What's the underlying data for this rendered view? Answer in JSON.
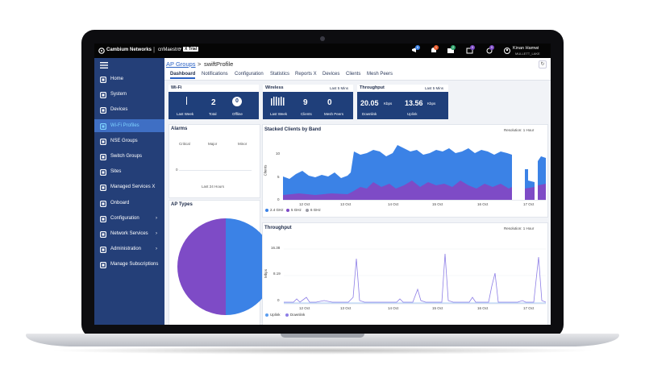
{
  "topbar": {
    "brand": "Cambium Networks",
    "product": "cnMaestro",
    "product_tm": "™",
    "edition": "X Trial",
    "user_name": "Kinan Hamwi",
    "user_org": "MULLETT_LAKE",
    "badges": [
      "6",
      "1",
      "2",
      "0",
      "0"
    ]
  },
  "sidebar": {
    "items": [
      {
        "label": "Home",
        "icon": "home-icon"
      },
      {
        "label": "System",
        "icon": "globe-icon"
      },
      {
        "label": "Devices",
        "icon": "devices-icon"
      },
      {
        "label": "Wi-Fi Profiles",
        "icon": "wifi-profile-icon"
      },
      {
        "label": "NSE Groups",
        "icon": "nse-icon"
      },
      {
        "label": "Switch Groups",
        "icon": "switch-icon"
      },
      {
        "label": "Sites",
        "icon": "sites-icon"
      },
      {
        "label": "Managed Services X",
        "icon": "managed-services-icon"
      },
      {
        "label": "Onboard",
        "icon": "onboard-icon"
      },
      {
        "label": "Configuration",
        "icon": "gear-icon"
      },
      {
        "label": "Network Services",
        "icon": "grid-icon"
      },
      {
        "label": "Administration",
        "icon": "admin-icon"
      },
      {
        "label": "Manage Subscriptions",
        "icon": "dollar-icon"
      }
    ],
    "active_index": 3,
    "chevron": "›"
  },
  "breadcrumb": {
    "parent": "AP Groups",
    "sep": ">",
    "current": "swiftProfile"
  },
  "tabs": [
    "Dashboard",
    "Notifications",
    "Configuration",
    "Statistics",
    "Reports X",
    "Devices",
    "Clients",
    "Mesh Peers"
  ],
  "active_tab": 0,
  "kpi": {
    "wifi": {
      "title": "Wi-Fi",
      "total": "2",
      "offline": "0",
      "labels": [
        "Last Week",
        "Total",
        "Offline"
      ]
    },
    "wireless": {
      "title": "Wireless",
      "period": "Last 5 Mins",
      "clients": "9",
      "mesh_peers": "0",
      "labels": [
        "Last Week",
        "Clients",
        "Mesh Peers"
      ]
    },
    "throughput": {
      "title": "Throughput",
      "period": "Last 5 Mins",
      "downlink": "20.05",
      "uplink": "13.56",
      "unit": "Kbps",
      "labels": [
        "Downlink",
        "Uplink"
      ]
    }
  },
  "alarms": {
    "title": "Alarms",
    "columns": [
      "Critical",
      "Major",
      "Minor"
    ],
    "zero": "0",
    "period": "Last 24 Hours"
  },
  "ap_types": {
    "title": "AP Types"
  },
  "stacked_clients": {
    "title": "Stacked Clients by Band",
    "resolution": "Resolution: 1 Hour",
    "ylabel": "Clients",
    "yticks": [
      "10",
      "5",
      "0"
    ],
    "xticks": [
      "12 Oct",
      "13 Oct",
      "14 Oct",
      "15 Oct",
      "16 Oct",
      "17 Oct"
    ],
    "legend": [
      "2.4 GHz",
      "5 GHz",
      "6 GHz"
    ]
  },
  "throughput_chart": {
    "title": "Throughput",
    "resolution": "Resolution: 1 Hour",
    "ylabel": "Mbps",
    "yticks": [
      "16.38",
      "8.19",
      "0"
    ],
    "xticks": [
      "12 Oct",
      "13 Oct",
      "14 Oct",
      "15 Oct",
      "16 Oct",
      "17 Oct"
    ],
    "legend": [
      "Uplink",
      "Downlink"
    ]
  },
  "colors": {
    "sidebar": "#243f78",
    "kpi": "#1f3f7a",
    "band24": "#3b82e6",
    "band5": "#7e4bc6",
    "pie_blue": "#3b82e6",
    "pie_purple": "#7e4bc6",
    "downlink": "#8d7ee6",
    "uplink": "#5b9df0"
  }
}
